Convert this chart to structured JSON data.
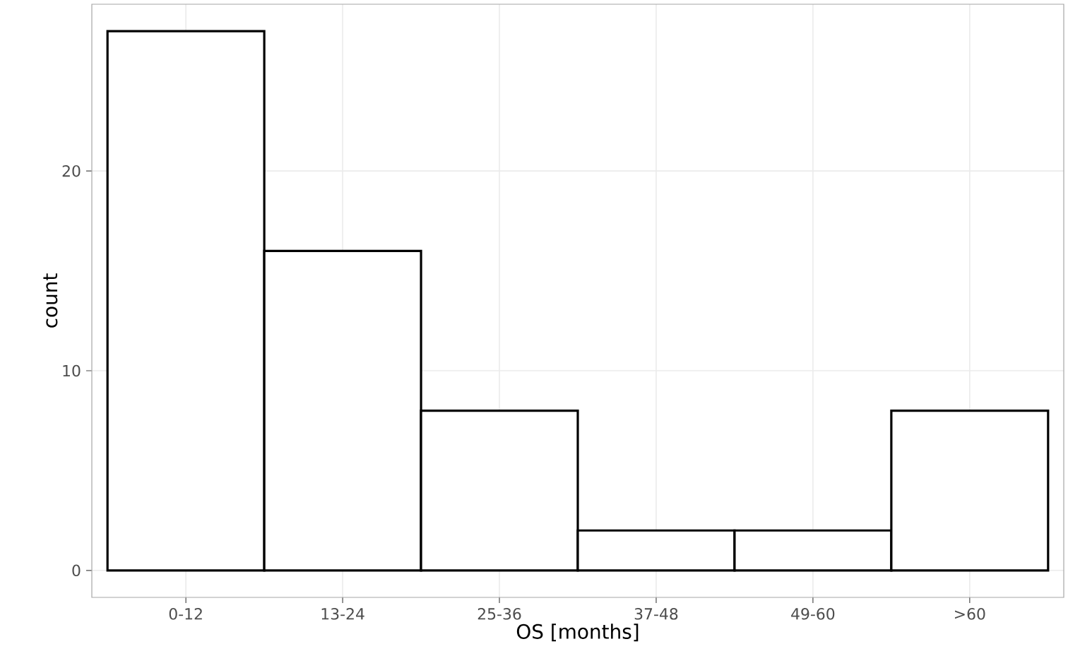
{
  "chart_data": {
    "type": "bar",
    "xlabel": "OS [months]",
    "ylabel": "count",
    "categories": [
      "0-12",
      "13-24",
      "25-36",
      "37-48",
      "49-60",
      ">60"
    ],
    "values": [
      27,
      16,
      8,
      2,
      2,
      8
    ],
    "color": "#ffffff",
    "ylim": [
      -1.35,
      28.35
    ],
    "yticks": [
      0,
      10,
      20
    ],
    "grid": true
  }
}
